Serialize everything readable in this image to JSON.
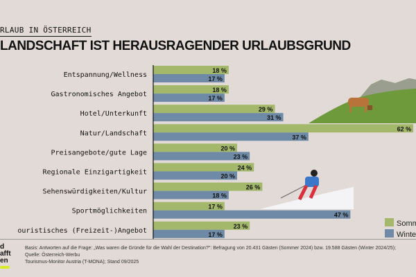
{
  "header": {
    "kicker": "RLAUB IN ÖSTERREICH",
    "title": "LANDSCHAFT IST HERAUSRAGENDER URLAUBSGRUND"
  },
  "chart_data": {
    "type": "bar",
    "orientation": "horizontal",
    "categories": [
      "Entspannung/Wellness",
      "Gastronomisches Angebot",
      "Hotel/Unterkunft",
      "Natur/Landschaft",
      "Preisangebote/gute Lage",
      "Regionale Einzigartigkeit",
      "Sehenswürdigkeiten/Kultur",
      "Sportmöglichkeiten",
      "ouristisches (Freizeit-)Angebot"
    ],
    "series": [
      {
        "name": "Somm",
        "color": "#a3b86a",
        "values": [
          18,
          18,
          29,
          62,
          20,
          24,
          26,
          17,
          23
        ]
      },
      {
        "name": "Winte",
        "color": "#6f8aa6",
        "values": [
          17,
          17,
          31,
          37,
          23,
          20,
          18,
          47,
          17
        ]
      }
    ],
    "unit": "%",
    "legend": "bottom-right",
    "grid": false
  },
  "footnote": {
    "line1": "Basis: Antworten auf die Frage: „Was waren die Gründe für die Wahl der Destination?\": Befragung von 20.431 Gästen (Sommer 2024) bzw. 19.588 Gästen (Winter 2024/25); Quelle: Österreich-Werbu",
    "line2": "Tourismus-Monitor Austria (T-MONA); Stand 09/2025"
  },
  "logo": {
    "lines": [
      "d",
      "afft",
      "en"
    ]
  }
}
